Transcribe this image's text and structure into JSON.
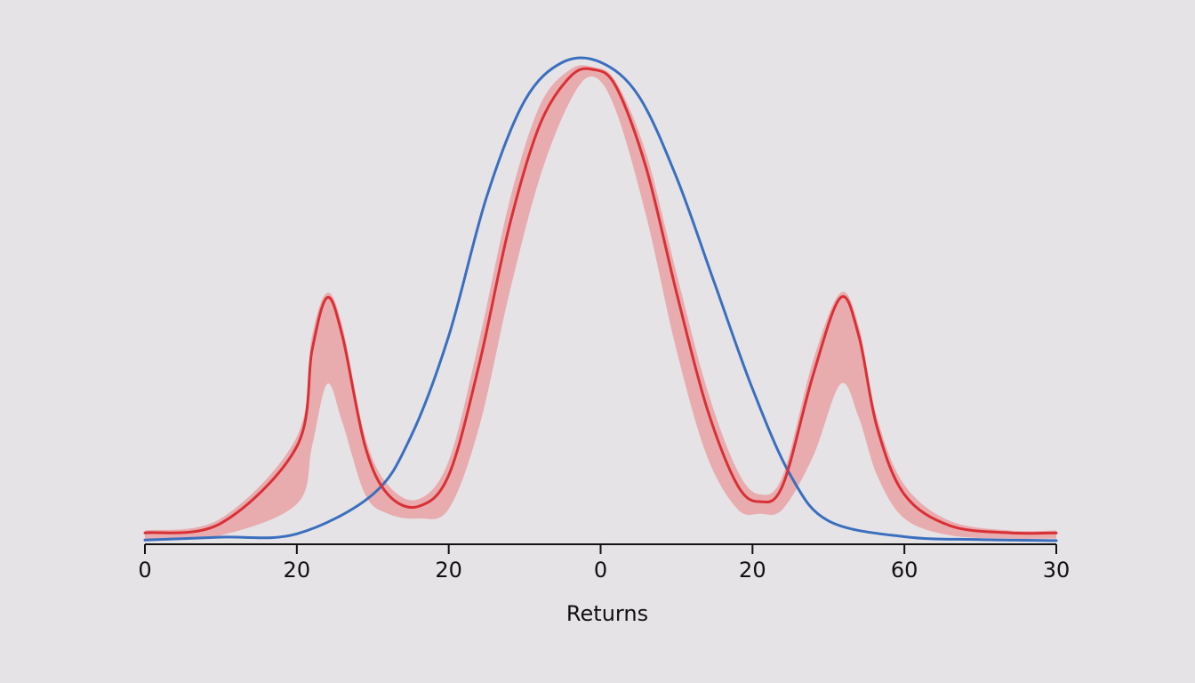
{
  "chart_data": {
    "type": "line",
    "title": "",
    "xlabel": "Returns",
    "ylabel": "",
    "x_tick_labels": [
      "0",
      "20",
      "20",
      "0",
      "20",
      "60",
      "30"
    ],
    "x_tick_positions": [
      0,
      1,
      2,
      3,
      4,
      5,
      6
    ],
    "xlim": [
      0,
      6
    ],
    "ylim": [
      0,
      1
    ],
    "grid": false,
    "legend": "none",
    "series": [
      {
        "role": "normal-fit",
        "color": "#3a6fbf",
        "x": [
          0,
          0.5,
          1,
          1.5,
          1.75,
          2,
          2.25,
          2.5,
          2.75,
          3,
          3.25,
          3.5,
          3.75,
          4,
          4.25,
          4.5,
          5,
          5.5,
          6
        ],
        "y": [
          0.005,
          0.011,
          0.018,
          0.1,
          0.22,
          0.43,
          0.72,
          0.92,
          1.0,
          1.0,
          0.93,
          0.76,
          0.54,
          0.32,
          0.14,
          0.045,
          0.012,
          0.006,
          0.004
        ]
      },
      {
        "role": "observed-median",
        "color": "#d93036",
        "x": [
          0,
          0.5,
          1,
          1.1,
          1.2,
          1.3,
          1.45,
          1.6,
          1.8,
          2,
          2.2,
          2.4,
          2.6,
          2.8,
          2.95,
          3.1,
          3.3,
          3.5,
          3.7,
          3.9,
          4.05,
          4.2,
          4.4,
          4.58,
          4.7,
          4.82,
          5,
          5.3,
          5.7,
          6
        ],
        "y": [
          0.02,
          0.04,
          0.2,
          0.4,
          0.51,
          0.43,
          0.2,
          0.1,
          0.075,
          0.14,
          0.37,
          0.66,
          0.87,
          0.97,
          0.985,
          0.95,
          0.78,
          0.52,
          0.28,
          0.12,
          0.085,
          0.12,
          0.35,
          0.51,
          0.43,
          0.24,
          0.1,
          0.035,
          0.02,
          0.02
        ]
      }
    ],
    "band": {
      "role": "uncertainty-band",
      "color": "#e8a1a3",
      "x": [
        0,
        0.5,
        1,
        1.1,
        1.2,
        1.3,
        1.45,
        1.6,
        1.8,
        2,
        2.2,
        2.4,
        2.6,
        2.8,
        2.95,
        3.1,
        3.3,
        3.5,
        3.7,
        3.9,
        4.05,
        4.2,
        4.4,
        4.58,
        4.7,
        4.82,
        5,
        5.3,
        5.7,
        6
      ],
      "upper": [
        0.025,
        0.05,
        0.22,
        0.43,
        0.52,
        0.45,
        0.22,
        0.12,
        0.09,
        0.17,
        0.42,
        0.71,
        0.91,
        0.985,
        0.99,
        0.96,
        0.81,
        0.56,
        0.32,
        0.15,
        0.1,
        0.14,
        0.38,
        0.52,
        0.45,
        0.26,
        0.12,
        0.045,
        0.025,
        0.025
      ],
      "lower": [
        0.005,
        0.015,
        0.08,
        0.2,
        0.33,
        0.25,
        0.1,
        0.06,
        0.05,
        0.07,
        0.24,
        0.52,
        0.76,
        0.92,
        0.97,
        0.9,
        0.68,
        0.4,
        0.18,
        0.07,
        0.06,
        0.07,
        0.18,
        0.33,
        0.26,
        0.14,
        0.05,
        0.015,
        0.008,
        0.008
      ]
    }
  }
}
